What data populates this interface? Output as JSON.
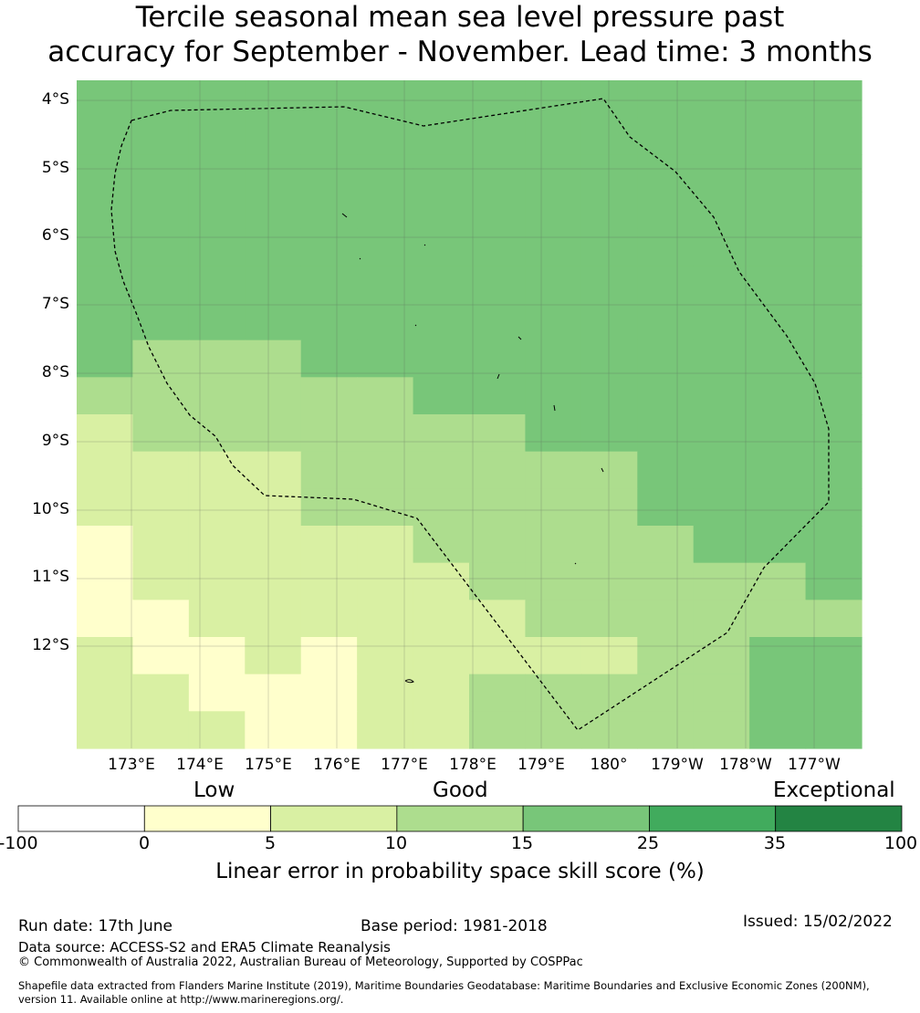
{
  "title_line1": "Tercile seasonal mean sea level pressure past",
  "title_line2": "accuracy for September - November. Lead time: 3 months",
  "lat_labels": [
    "4°S",
    "5°S",
    "6°S",
    "7°S",
    "8°S",
    "9°S",
    "10°S",
    "11°S",
    "12°S"
  ],
  "lon_labels": [
    "173°E",
    "174°E",
    "175°E",
    "176°E",
    "177°E",
    "178°E",
    "179°E",
    "180°",
    "179°W",
    "178°W",
    "177°W"
  ],
  "colorbar": {
    "categories": [
      "Low",
      "Good",
      "Exceptional"
    ],
    "ticks": [
      "-100",
      "0",
      "5",
      "10",
      "15",
      "25",
      "35",
      "100"
    ],
    "colors": [
      "#ffffff",
      "#ffffcc",
      "#d9f0a3",
      "#addd8e",
      "#78c679",
      "#41ab5d",
      "#238443"
    ],
    "label": "Linear error in probability space skill score (%)"
  },
  "footer": {
    "run_date": "Run date: 17th June",
    "base_period": "Base period: 1981-2018",
    "issued": "Issued: 15/02/2022",
    "data_source": "Data source: ACCESS-S2 and ERA5 Climate Reanalysis",
    "copyright": "© Commonwealth of Australia 2022, Australian Bureau of Meteorology, Supported by COSPPac",
    "shapefile_line1": "Shapefile data extracted from Flanders Marine Institute (2019), Maritime Boundaries Geodatabase: Maritime Boundaries and Exclusive Economic Zones (200NM),",
    "shapefile_line2": "version 11. Available online at http://www.marineregions.org/."
  },
  "grid_classes": [
    [
      4,
      4,
      4,
      4,
      4,
      4,
      4,
      4,
      4,
      4,
      4,
      4,
      4,
      4
    ],
    [
      4,
      4,
      4,
      4,
      4,
      4,
      4,
      4,
      4,
      4,
      4,
      4,
      4,
      4
    ],
    [
      4,
      4,
      4,
      4,
      4,
      4,
      4,
      4,
      4,
      4,
      4,
      4,
      4,
      4
    ],
    [
      4,
      4,
      4,
      4,
      4,
      4,
      4,
      4,
      4,
      4,
      4,
      4,
      4,
      4
    ],
    [
      4,
      4,
      4,
      4,
      4,
      4,
      4,
      4,
      4,
      4,
      4,
      4,
      4,
      4
    ],
    [
      4,
      4,
      4,
      4,
      4,
      4,
      4,
      4,
      4,
      4,
      4,
      4,
      4,
      4
    ],
    [
      4,
      4,
      4,
      4,
      4,
      4,
      4,
      4,
      4,
      4,
      4,
      4,
      4,
      4
    ],
    [
      4,
      3,
      3,
      3,
      4,
      4,
      4,
      4,
      4,
      4,
      4,
      4,
      4,
      4
    ],
    [
      3,
      3,
      3,
      3,
      3,
      3,
      4,
      4,
      4,
      4,
      4,
      4,
      4,
      4
    ],
    [
      2,
      3,
      3,
      3,
      3,
      3,
      3,
      3,
      4,
      4,
      4,
      4,
      4,
      4
    ],
    [
      2,
      2,
      2,
      2,
      3,
      3,
      3,
      3,
      3,
      3,
      4,
      4,
      4,
      4
    ],
    [
      2,
      2,
      2,
      2,
      3,
      3,
      3,
      3,
      3,
      3,
      4,
      4,
      4,
      4
    ],
    [
      1,
      2,
      2,
      2,
      2,
      2,
      3,
      3,
      3,
      3,
      3,
      4,
      4,
      4
    ],
    [
      1,
      2,
      2,
      2,
      2,
      2,
      2,
      3,
      3,
      3,
      3,
      3,
      3,
      4
    ],
    [
      1,
      1,
      2,
      2,
      2,
      2,
      2,
      2,
      3,
      3,
      3,
      3,
      3,
      3
    ],
    [
      2,
      1,
      1,
      2,
      1,
      2,
      2,
      2,
      2,
      2,
      3,
      3,
      4,
      4
    ],
    [
      2,
      2,
      1,
      1,
      1,
      2,
      2,
      3,
      3,
      3,
      3,
      3,
      4,
      4
    ],
    [
      2,
      2,
      2,
      1,
      1,
      2,
      2,
      3,
      3,
      3,
      3,
      3,
      4,
      4
    ]
  ]
}
